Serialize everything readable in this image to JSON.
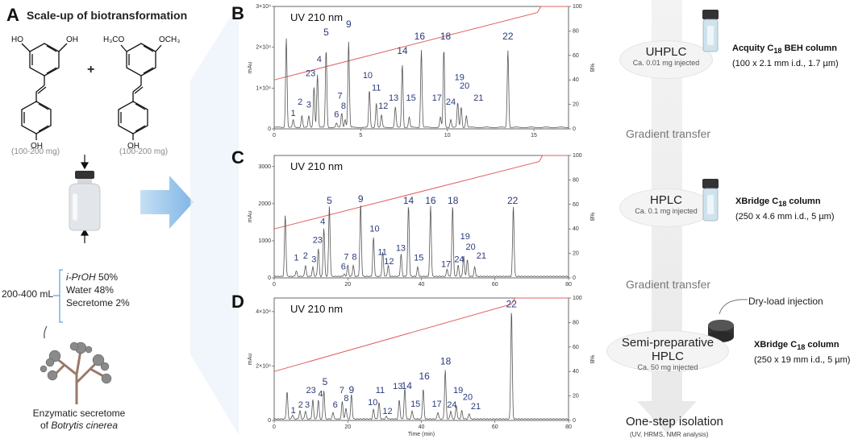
{
  "panel_a": {
    "letter": "A",
    "title": "Scale-up of biotransformation",
    "substrate1_amount": "(100-200 mg)",
    "substrate2_amount": "(100-200 mg)",
    "plus": "+",
    "volume": "200-400 mL",
    "solvent": [
      {
        "name": "i-PrOH",
        "pct": "50%"
      },
      {
        "name": "Water",
        "pct": "48%"
      },
      {
        "name": "Secretome",
        "pct": "2%"
      }
    ],
    "caption_line1": "Enzymatic secretome",
    "caption_line2_prefix": "of ",
    "caption_species": "Botrytis cinerea"
  },
  "labels": {
    "uv": "UV 210 nm",
    "mau": "mAu",
    "pctB": "%B",
    "time": "Time (min)"
  },
  "chromatograms": [
    {
      "letter": "B",
      "xmax": 17,
      "xticks": [
        0,
        5,
        10,
        15
      ],
      "ymax": 3.0,
      "ylabel_scale": "×10^4",
      "yticks": [
        "0",
        "1×10⁴",
        "2×10⁴",
        "3×10⁴"
      ],
      "gradient": {
        "x0": 0,
        "b0": 40,
        "x1": 15.2,
        "b1": 95,
        "end": 17
      },
      "peaks": [
        {
          "id": "0",
          "x": 0.7,
          "h": 2.2
        },
        {
          "id": "1",
          "x": 1.1,
          "h": 0.18
        },
        {
          "id": "2",
          "x": 1.6,
          "h": 0.3
        },
        {
          "id": "3",
          "x": 2.0,
          "h": 0.28
        },
        {
          "id": "23",
          "x": 2.3,
          "h": 1.0
        },
        {
          "id": "4",
          "x": 2.5,
          "h": 1.3
        },
        {
          "id": "5",
          "x": 3.0,
          "h": 1.9
        },
        {
          "id": "6",
          "x": 3.6,
          "h": 0.1
        },
        {
          "id": "7",
          "x": 3.9,
          "h": 0.35
        },
        {
          "id": "8",
          "x": 4.1,
          "h": 0.2
        },
        {
          "id": "9",
          "x": 4.3,
          "h": 2.1
        },
        {
          "id": "10",
          "x": 5.5,
          "h": 0.9
        },
        {
          "id": "11",
          "x": 5.9,
          "h": 0.6
        },
        {
          "id": "12",
          "x": 6.2,
          "h": 0.3
        },
        {
          "id": "13",
          "x": 7.0,
          "h": 0.5
        },
        {
          "id": "14",
          "x": 7.4,
          "h": 1.55
        },
        {
          "id": "15",
          "x": 7.8,
          "h": 0.25
        },
        {
          "id": "16",
          "x": 8.5,
          "h": 1.9
        },
        {
          "id": "17",
          "x": 9.6,
          "h": 0.25
        },
        {
          "id": "18",
          "x": 9.8,
          "h": 1.9
        },
        {
          "id": "24",
          "x": 10.2,
          "h": 0.2
        },
        {
          "id": "19",
          "x": 10.6,
          "h": 0.6
        },
        {
          "id": "20",
          "x": 10.8,
          "h": 0.5
        },
        {
          "id": "21",
          "x": 11.1,
          "h": 0.3
        },
        {
          "id": "22",
          "x": 13.5,
          "h": 1.9
        }
      ],
      "labels": [
        {
          "t": "1",
          "x": 1.1,
          "h": 0.28
        },
        {
          "t": "2",
          "x": 1.5,
          "h": 0.55
        },
        {
          "t": "3",
          "x": 2.0,
          "h": 0.48
        },
        {
          "t": "23",
          "x": 2.1,
          "h": 1.25
        },
        {
          "t": "4",
          "x": 2.6,
          "h": 1.6
        },
        {
          "t": "5",
          "x": 3.0,
          "h": 2.25
        },
        {
          "t": "6",
          "x": 3.6,
          "h": 0.25
        },
        {
          "t": "7",
          "x": 3.8,
          "h": 0.7
        },
        {
          "t": "8",
          "x": 4.0,
          "h": 0.45
        },
        {
          "t": "9",
          "x": 4.3,
          "h": 2.45
        },
        {
          "t": "10",
          "x": 5.4,
          "h": 1.2
        },
        {
          "t": "11",
          "x": 5.9,
          "h": 0.9
        },
        {
          "t": "12",
          "x": 6.3,
          "h": 0.45
        },
        {
          "t": "13",
          "x": 6.9,
          "h": 0.65
        },
        {
          "t": "14",
          "x": 7.4,
          "h": 1.8
        },
        {
          "t": "15",
          "x": 7.9,
          "h": 0.65
        },
        {
          "t": "16",
          "x": 8.4,
          "h": 2.15
        },
        {
          "t": "17",
          "x": 9.4,
          "h": 0.65
        },
        {
          "t": "18",
          "x": 9.9,
          "h": 2.15
        },
        {
          "t": "24",
          "x": 10.2,
          "h": 0.55
        },
        {
          "t": "19",
          "x": 10.7,
          "h": 1.15
        },
        {
          "t": "20",
          "x": 11.0,
          "h": 0.95
        },
        {
          "t": "21",
          "x": 11.8,
          "h": 0.65
        },
        {
          "t": "22",
          "x": 13.5,
          "h": 2.15
        }
      ]
    },
    {
      "letter": "C",
      "xmax": 80,
      "xticks": [
        0,
        20,
        40,
        60,
        80
      ],
      "ymax": 3300,
      "ylabel_scale": "",
      "yticks": [
        "0",
        "1000",
        "2000",
        "3000"
      ],
      "gradient": {
        "x0": 0,
        "b0": 40,
        "x1": 72,
        "b1": 95,
        "end": 80
      },
      "peaks": [
        {
          "id": "0",
          "x": 3.0,
          "h": 1650
        },
        {
          "id": "1",
          "x": 6.0,
          "h": 150
        },
        {
          "id": "2",
          "x": 8.5,
          "h": 300
        },
        {
          "id": "3",
          "x": 10.5,
          "h": 250
        },
        {
          "id": "23",
          "x": 12.0,
          "h": 750
        },
        {
          "id": "4",
          "x": 13.5,
          "h": 1300
        },
        {
          "id": "5",
          "x": 15.0,
          "h": 1900
        },
        {
          "id": "6",
          "x": 19.0,
          "h": 60
        },
        {
          "id": "7",
          "x": 20.0,
          "h": 300
        },
        {
          "id": "8",
          "x": 21.5,
          "h": 300
        },
        {
          "id": "9",
          "x": 23.5,
          "h": 1950
        },
        {
          "id": "10",
          "x": 27.0,
          "h": 1050
        },
        {
          "id": "11",
          "x": 29.5,
          "h": 650
        },
        {
          "id": "12",
          "x": 31.0,
          "h": 300
        },
        {
          "id": "13",
          "x": 34.5,
          "h": 600
        },
        {
          "id": "14",
          "x": 36.5,
          "h": 1900
        },
        {
          "id": "15",
          "x": 39.0,
          "h": 250
        },
        {
          "id": "16",
          "x": 42.5,
          "h": 1900
        },
        {
          "id": "17",
          "x": 47.0,
          "h": 200
        },
        {
          "id": "18",
          "x": 48.5,
          "h": 1900
        },
        {
          "id": "24",
          "x": 50.0,
          "h": 300
        },
        {
          "id": "19",
          "x": 51.5,
          "h": 550
        },
        {
          "id": "20",
          "x": 52.5,
          "h": 450
        },
        {
          "id": "21",
          "x": 54.5,
          "h": 250
        },
        {
          "id": "22",
          "x": 65.0,
          "h": 1900
        }
      ],
      "labels": [
        {
          "t": "1",
          "x": 6.0,
          "h": 420
        },
        {
          "t": "2",
          "x": 8.5,
          "h": 480
        },
        {
          "t": "3",
          "x": 10.8,
          "h": 380
        },
        {
          "t": "23",
          "x": 11.8,
          "h": 900
        },
        {
          "t": "4",
          "x": 13.2,
          "h": 1400
        },
        {
          "t": "5",
          "x": 15.0,
          "h": 1950
        },
        {
          "t": "6",
          "x": 18.8,
          "h": 180
        },
        {
          "t": "7",
          "x": 19.6,
          "h": 450
        },
        {
          "t": "8",
          "x": 21.8,
          "h": 450
        },
        {
          "t": "9",
          "x": 23.5,
          "h": 2000
        },
        {
          "t": "10",
          "x": 27.3,
          "h": 1200
        },
        {
          "t": "11",
          "x": 29.4,
          "h": 580
        },
        {
          "t": "12",
          "x": 31.2,
          "h": 330
        },
        {
          "t": "13",
          "x": 34.4,
          "h": 680
        },
        {
          "t": "14",
          "x": 36.5,
          "h": 1950
        },
        {
          "t": "15",
          "x": 39.3,
          "h": 420
        },
        {
          "t": "16",
          "x": 42.5,
          "h": 1950
        },
        {
          "t": "17",
          "x": 46.7,
          "h": 250
        },
        {
          "t": "18",
          "x": 48.6,
          "h": 1950
        },
        {
          "t": "24",
          "x": 50.3,
          "h": 380
        },
        {
          "t": "19",
          "x": 51.9,
          "h": 1000
        },
        {
          "t": "20",
          "x": 53.4,
          "h": 720
        },
        {
          "t": "21",
          "x": 56.3,
          "h": 480
        },
        {
          "t": "22",
          "x": 64.8,
          "h": 1950
        }
      ]
    },
    {
      "letter": "D",
      "xmax": 80,
      "xticks": [
        0,
        20,
        40,
        60,
        80
      ],
      "ymax": 4.5,
      "ylabel_scale": "×10^4",
      "yticks": [
        "0",
        "2×10⁴",
        "4×10⁴"
      ],
      "gradient": {
        "x0": 0,
        "b0": 40,
        "x1": 64.5,
        "b1": 95,
        "end": 80
      },
      "peaks": [
        {
          "id": "0",
          "x": 3.5,
          "h": 1.0
        },
        {
          "id": "1",
          "x": 5.0,
          "h": 0.15
        },
        {
          "id": "2",
          "x": 7.0,
          "h": 0.3
        },
        {
          "id": "3",
          "x": 8.5,
          "h": 0.3
        },
        {
          "id": "23",
          "x": 10.5,
          "h": 0.7
        },
        {
          "id": "4",
          "x": 12.0,
          "h": 0.7
        },
        {
          "id": "5",
          "x": 13.5,
          "h": 1.05
        },
        {
          "id": "6",
          "x": 16.0,
          "h": 0.25
        },
        {
          "id": "7",
          "x": 18.5,
          "h": 0.65
        },
        {
          "id": "8",
          "x": 19.5,
          "h": 0.4
        },
        {
          "id": "9",
          "x": 21.0,
          "h": 0.9
        },
        {
          "id": "10",
          "x": 27.0,
          "h": 0.35
        },
        {
          "id": "11",
          "x": 28.5,
          "h": 0.6
        },
        {
          "id": "12",
          "x": 30.5,
          "h": 0.1
        },
        {
          "id": "13",
          "x": 34.0,
          "h": 0.7
        },
        {
          "id": "14",
          "x": 35.5,
          "h": 1.1
        },
        {
          "id": "15",
          "x": 37.5,
          "h": 0.3
        },
        {
          "id": "16",
          "x": 40.5,
          "h": 1.1
        },
        {
          "id": "17",
          "x": 44.5,
          "h": 0.25
        },
        {
          "id": "18",
          "x": 46.5,
          "h": 1.8
        },
        {
          "id": "24",
          "x": 48.0,
          "h": 0.3
        },
        {
          "id": "19",
          "x": 49.5,
          "h": 0.5
        },
        {
          "id": "20",
          "x": 51.0,
          "h": 0.3
        },
        {
          "id": "21",
          "x": 53.0,
          "h": 0.2
        },
        {
          "id": "22",
          "x": 64.5,
          "h": 4.0
        }
      ],
      "labels": [
        {
          "t": "1",
          "x": 5.2,
          "h": 0.2
        },
        {
          "t": "2",
          "x": 7.2,
          "h": 0.42
        },
        {
          "t": "3",
          "x": 9.0,
          "h": 0.42
        },
        {
          "t": "23",
          "x": 10.0,
          "h": 0.95
        },
        {
          "t": "4",
          "x": 12.6,
          "h": 0.82
        },
        {
          "t": "5",
          "x": 13.8,
          "h": 1.25
        },
        {
          "t": "6",
          "x": 16.6,
          "h": 0.42
        },
        {
          "t": "7",
          "x": 18.4,
          "h": 0.95
        },
        {
          "t": "8",
          "x": 19.6,
          "h": 0.65
        },
        {
          "t": "9",
          "x": 21.0,
          "h": 0.95
        },
        {
          "t": "10",
          "x": 26.8,
          "h": 0.5
        },
        {
          "t": "11",
          "x": 28.8,
          "h": 0.95
        },
        {
          "t": "12",
          "x": 30.8,
          "h": 0.18
        },
        {
          "t": "13",
          "x": 33.6,
          "h": 1.1
        },
        {
          "t": "14",
          "x": 36.0,
          "h": 1.1
        },
        {
          "t": "15",
          "x": 38.4,
          "h": 0.45
        },
        {
          "t": "16",
          "x": 40.8,
          "h": 1.45
        },
        {
          "t": "17",
          "x": 44.2,
          "h": 0.45
        },
        {
          "t": "18",
          "x": 46.6,
          "h": 2.0
        },
        {
          "t": "24",
          "x": 48.3,
          "h": 0.42
        },
        {
          "t": "19",
          "x": 50.0,
          "h": 0.95
        },
        {
          "t": "20",
          "x": 52.6,
          "h": 0.7
        },
        {
          "t": "21",
          "x": 54.8,
          "h": 0.35
        },
        {
          "t": "22",
          "x": 64.5,
          "h": 4.1
        }
      ]
    }
  ],
  "right": {
    "uhplc": {
      "title": "UHPLC",
      "inj": "Ca. 0.01 mg injected",
      "col_name": "Acquity C",
      "col_sub": "18",
      "col_suffix": " BEH column",
      "col_dims": "(100 x 2.1 mm i.d., 1.7 µm)"
    },
    "gt1": "Gradient transfer",
    "hplc": {
      "title": "HPLC",
      "inj": "Ca. 0.1 mg injected",
      "col_name": "XBridge C",
      "col_sub": "18",
      "col_suffix": " column",
      "col_dims": "(250 x 4.6 mm i.d., 5 µm)"
    },
    "gt2": "Gradient transfer",
    "dryload": "Dry-load injection",
    "semi": {
      "title": "Semi-preparative HPLC",
      "inj": "Ca. 50 mg injected",
      "col_name": "XBridge C",
      "col_sub": "18",
      "col_suffix": " column",
      "col_dims": "(250 x 19 mm i.d., 5 µm)"
    },
    "final_title": "One-step isolation",
    "final_sub": "(UV, HRMS, NMR analysis)"
  },
  "colors": {
    "trace": "#555555",
    "gradient": "#e06060",
    "label": "#2a3a7a",
    "arrow": "#7fb6e6"
  }
}
